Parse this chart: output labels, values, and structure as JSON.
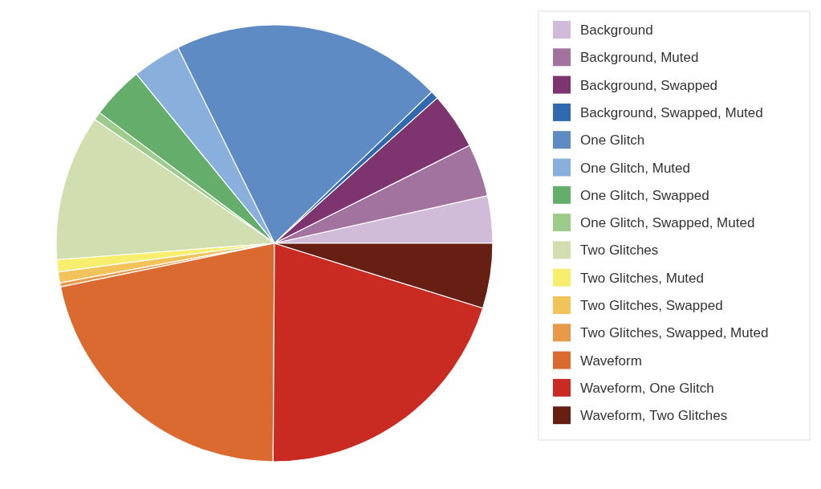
{
  "chart_data": {
    "type": "pie",
    "legend": "right",
    "categories": [
      "Background",
      "Background, Muted",
      "Background, Swapped",
      "Background, Swapped, Muted",
      "One Glitch",
      "One Glitch, Muted",
      "One Glitch, Swapped",
      "One Glitch, Swapped, Muted",
      "Two Glitches",
      "Two Glitches, Muted",
      "Two Glitches, Swapped",
      "Two Glitches, Swapped, Muted",
      "Waveform",
      "Waveform, One Glitch",
      "Waveform, Two Glitches"
    ],
    "values": [
      3.5,
      3.9,
      4.2,
      0.6,
      20.1,
      3.6,
      3.9,
      0.6,
      10.8,
      0.9,
      0.8,
      0.3,
      21.7,
      20.3,
      4.8
    ],
    "colors": [
      "#d0bcd9",
      "#a2739f",
      "#7e346f",
      "#2f69b0",
      "#5e8bc4",
      "#89b0dc",
      "#64ad6a",
      "#9ccb8c",
      "#d1dfb0",
      "#f7ee6e",
      "#f1c35a",
      "#e8994a",
      "#da6a30",
      "#c92b22",
      "#671f14"
    ]
  }
}
